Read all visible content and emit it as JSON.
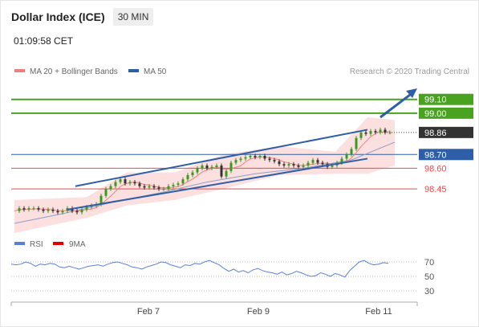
{
  "header": {
    "title": "Dollar Index (ICE)",
    "timeframe": "30 MIN",
    "time": "01:09:58 CET"
  },
  "legend": {
    "ma20": "MA 20 + Bollinger Bands",
    "ma50": "MA 50",
    "copyright": "Research © 2020 Trading Central",
    "rsi": "RSI",
    "rsi_ma": "9MA"
  },
  "colors": {
    "ma20": "#f08080",
    "ma50": "#2f5ea8",
    "support": "#e84a4a",
    "resistance": "#4aa320",
    "candle_up": "#3a9a1f",
    "candle_down": "#333333",
    "band_fill": "#fbdada",
    "rsi": "#5b7fd4",
    "rsi_ma": "#e00000",
    "current": "#333333"
  },
  "chart_data": {
    "type": "candlestick",
    "title": "Dollar Index (ICE)",
    "timeframe": "30 MIN",
    "y_range": [
      98.2,
      99.25
    ],
    "current_price": 98.86,
    "resistances": [
      99.1,
      99.0
    ],
    "supports": [
      98.7,
      98.6,
      98.45
    ],
    "x_ticks": [
      "Feb 7",
      "Feb 9",
      "Feb 11"
    ],
    "close_path": [
      [
        0,
        98.29
      ],
      [
        6,
        98.31
      ],
      [
        12,
        98.3
      ],
      [
        18,
        98.31
      ],
      [
        24,
        98.31
      ],
      [
        30,
        98.3
      ],
      [
        36,
        98.29
      ],
      [
        42,
        98.3
      ],
      [
        48,
        98.29
      ],
      [
        54,
        98.28
      ],
      [
        60,
        98.29
      ],
      [
        66,
        98.31
      ],
      [
        72,
        98.29
      ],
      [
        78,
        98.28
      ],
      [
        84,
        98.3
      ],
      [
        90,
        98.32
      ],
      [
        96,
        98.33
      ],
      [
        102,
        98.34
      ],
      [
        108,
        98.4
      ],
      [
        114,
        98.45
      ],
      [
        120,
        98.47
      ],
      [
        126,
        98.5
      ],
      [
        132,
        98.52
      ],
      [
        138,
        98.49
      ],
      [
        144,
        98.5
      ],
      [
        150,
        98.49
      ],
      [
        156,
        98.47
      ],
      [
        162,
        98.46
      ],
      [
        168,
        98.47
      ],
      [
        174,
        98.46
      ],
      [
        180,
        98.45
      ],
      [
        186,
        98.45
      ],
      [
        192,
        98.47
      ],
      [
        198,
        98.48
      ],
      [
        204,
        98.49
      ],
      [
        210,
        98.52
      ],
      [
        216,
        98.55
      ],
      [
        222,
        98.57
      ],
      [
        228,
        98.6
      ],
      [
        234,
        98.62
      ],
      [
        240,
        98.6
      ],
      [
        246,
        98.61
      ],
      [
        252,
        98.62
      ],
      [
        258,
        98.54
      ],
      [
        264,
        98.58
      ],
      [
        270,
        98.64
      ],
      [
        276,
        98.66
      ],
      [
        282,
        98.67
      ],
      [
        288,
        98.68
      ],
      [
        294,
        98.69
      ],
      [
        300,
        98.68
      ],
      [
        306,
        98.69
      ],
      [
        312,
        98.67
      ],
      [
        318,
        98.66
      ],
      [
        324,
        98.65
      ],
      [
        330,
        98.63
      ],
      [
        336,
        98.62
      ],
      [
        342,
        98.63
      ],
      [
        348,
        98.62
      ],
      [
        354,
        98.61
      ],
      [
        360,
        98.62
      ],
      [
        366,
        98.64
      ],
      [
        372,
        98.66
      ],
      [
        378,
        98.64
      ],
      [
        384,
        98.63
      ],
      [
        390,
        98.61
      ],
      [
        396,
        98.62
      ],
      [
        402,
        98.64
      ],
      [
        408,
        98.67
      ],
      [
        414,
        98.7
      ],
      [
        420,
        98.74
      ],
      [
        426,
        98.82
      ],
      [
        432,
        98.86
      ],
      [
        438,
        98.85
      ],
      [
        444,
        98.87
      ],
      [
        450,
        98.86
      ],
      [
        456,
        98.88
      ],
      [
        462,
        98.86
      ],
      [
        468,
        98.86
      ]
    ],
    "ma50_path": [
      [
        0,
        98.2
      ],
      [
        60,
        98.27
      ],
      [
        120,
        98.35
      ],
      [
        180,
        98.42
      ],
      [
        240,
        98.5
      ],
      [
        300,
        98.56
      ],
      [
        360,
        98.6
      ],
      [
        420,
        98.66
      ],
      [
        474,
        98.79
      ]
    ],
    "bollinger_band": {
      "upper": [
        [
          0,
          98.37
        ],
        [
          90,
          98.39
        ],
        [
          140,
          98.57
        ],
        [
          200,
          98.57
        ],
        [
          260,
          98.7
        ],
        [
          330,
          98.76
        ],
        [
          400,
          98.72
        ],
        [
          440,
          98.97
        ],
        [
          474,
          98.95
        ]
      ],
      "lower": [
        [
          0,
          98.13
        ],
        [
          90,
          98.24
        ],
        [
          140,
          98.33
        ],
        [
          200,
          98.37
        ],
        [
          260,
          98.45
        ],
        [
          330,
          98.55
        ],
        [
          400,
          98.56
        ],
        [
          440,
          98.56
        ],
        [
          474,
          98.62
        ]
      ]
    },
    "channel_lines": [
      {
        "start": [
          76,
          98.47
        ],
        "end": [
          440,
          98.88
        ]
      },
      {
        "start": [
          66,
          98.3
        ],
        "end": [
          440,
          98.67
        ]
      }
    ],
    "rsi": {
      "levels": [
        70,
        50,
        30
      ],
      "values": [
        67,
        66,
        67,
        70,
        68,
        64,
        67,
        66,
        68,
        67,
        63,
        62,
        64,
        62,
        60,
        62,
        64,
        65,
        66,
        64,
        67,
        69,
        70,
        68,
        66,
        63,
        62,
        60,
        63,
        65,
        67,
        70,
        69,
        66,
        64,
        62,
        66,
        65,
        68,
        67,
        70,
        72,
        69,
        66,
        61,
        57,
        60,
        56,
        58,
        55,
        59,
        61,
        58,
        56,
        55,
        53,
        56,
        52,
        54,
        57,
        55,
        52,
        50,
        51,
        55,
        53,
        50,
        54,
        52,
        49,
        58,
        64,
        70,
        72,
        68,
        66,
        67,
        69,
        68
      ]
    }
  }
}
